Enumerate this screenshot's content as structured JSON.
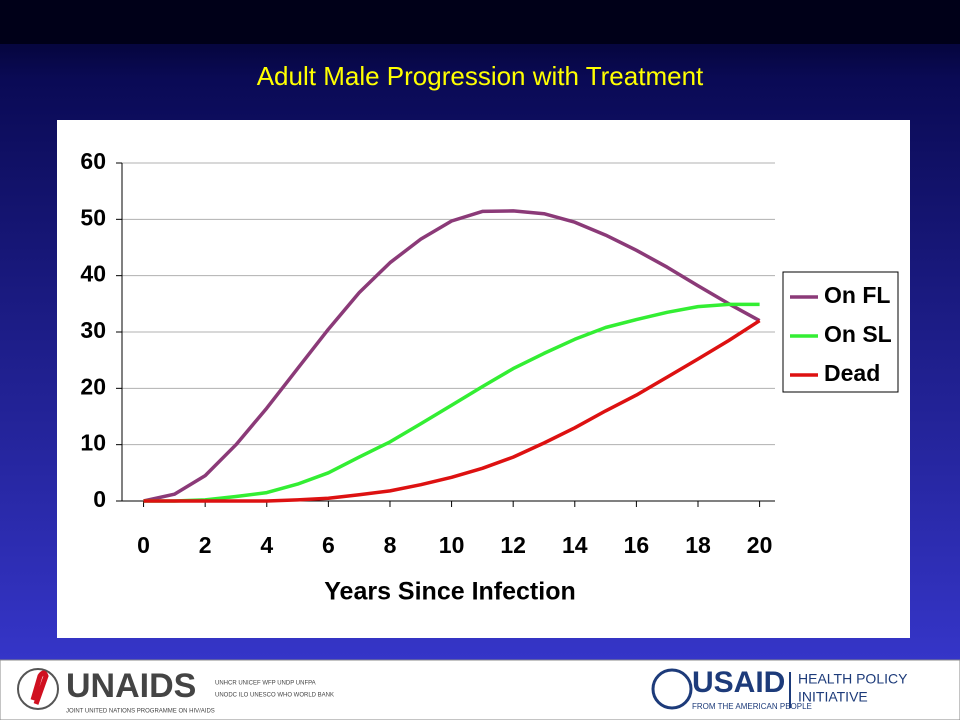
{
  "chart_data": {
    "type": "line",
    "title": "Adult Male Progression with Treatment",
    "x_label": "Years Since Infection",
    "x": [
      0,
      1,
      2,
      3,
      4,
      5,
      6,
      7,
      8,
      9,
      10,
      11,
      12,
      13,
      14,
      15,
      16,
      17,
      18,
      19,
      20
    ],
    "series": [
      {
        "name": "On FL",
        "color": "#8b3a78",
        "values": [
          0,
          1.2,
          4.5,
          10,
          16.5,
          23.5,
          30.5,
          37,
          42.3,
          46.5,
          49.7,
          51.4,
          51.5,
          51,
          49.5,
          47.2,
          44.5,
          41.5,
          38.2,
          35,
          32
        ]
      },
      {
        "name": "On SL",
        "color": "#33ee33",
        "values": [
          0,
          0,
          0.2,
          0.8,
          1.5,
          3,
          5,
          7.8,
          10.5,
          13.7,
          17,
          20.3,
          23.5,
          26.2,
          28.7,
          30.8,
          32.2,
          33.5,
          34.5,
          34.9,
          34.9
        ]
      },
      {
        "name": "Dead",
        "color": "#dd1111",
        "values": [
          0,
          0,
          0,
          0,
          0,
          0.2,
          0.5,
          1.1,
          1.8,
          2.9,
          4.2,
          5.8,
          7.8,
          10.3,
          13,
          16,
          18.8,
          22,
          25.2,
          28.5,
          32
        ]
      }
    ],
    "xlim": [
      -0.7,
      20.5
    ],
    "xticks": [
      0,
      2,
      4,
      6,
      8,
      10,
      12,
      14,
      16,
      18,
      20
    ],
    "ylim": [
      0,
      60
    ],
    "yticks": [
      0,
      10,
      20,
      30,
      40,
      50,
      60
    ],
    "grid": true,
    "legend": "right"
  },
  "footer": {
    "unaids": "UNAIDS",
    "unaids_sub": "JOINT UNITED NATIONS PROGRAMME ON HIV/AIDS",
    "cosponsors_1": "UNHCR UNICEF WFP UNDP UNFPA",
    "cosponsors_2": "UNODC ILO UNESCO WHO WORLD BANK",
    "usaid": "USAID",
    "usaid_sub": "FROM THE AMERICAN PEOPLE",
    "hpi_1": "HEALTH POLICY",
    "hpi_2": "INITIATIVE"
  }
}
